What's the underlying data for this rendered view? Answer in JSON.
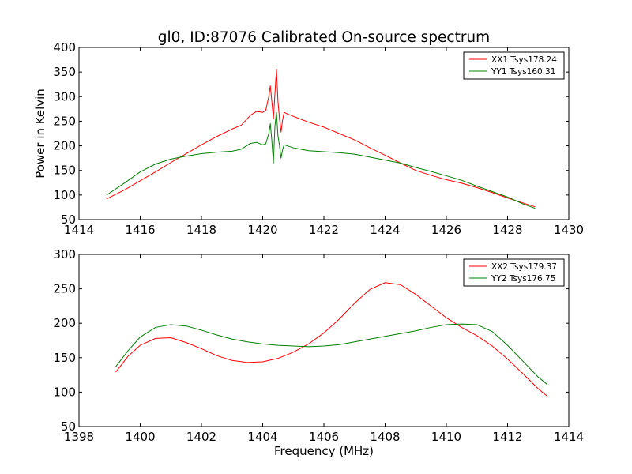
{
  "chart_data": [
    {
      "type": "line",
      "title": "gl0, ID:87076 Calibrated On-source spectrum",
      "xlabel": "",
      "ylabel": "Power in Kelvin",
      "xlim": [
        1414,
        1430
      ],
      "ylim": [
        50,
        400
      ],
      "xticks": [
        1414,
        1416,
        1418,
        1420,
        1422,
        1424,
        1426,
        1428,
        1430
      ],
      "yticks": [
        50,
        100,
        150,
        200,
        250,
        300,
        350,
        400
      ],
      "legend": "top-right",
      "series": [
        {
          "name": "XX1 Tsys178.24",
          "color": "#ff0000",
          "x": [
            1414.9,
            1415.5,
            1416,
            1416.5,
            1417,
            1417.5,
            1418,
            1418.5,
            1419,
            1419.3,
            1419.6,
            1419.8,
            1420.0,
            1420.1,
            1420.2,
            1420.25,
            1420.3,
            1420.35,
            1420.4,
            1420.45,
            1420.5,
            1420.55,
            1420.6,
            1420.65,
            1420.7,
            1420.8,
            1421,
            1421.5,
            1422,
            1422.5,
            1423,
            1423.5,
            1424,
            1424.5,
            1425,
            1425.5,
            1426,
            1426.5,
            1427,
            1427.5,
            1428,
            1428.5,
            1428.9
          ],
          "y": [
            92,
            111,
            129,
            147,
            166,
            184,
            202,
            219,
            234,
            242,
            262,
            270,
            268,
            272,
            300,
            322,
            290,
            255,
            305,
            356,
            290,
            255,
            228,
            252,
            268,
            265,
            260,
            248,
            238,
            225,
            212,
            196,
            181,
            165,
            150,
            140,
            131,
            124,
            115,
            105,
            94,
            84,
            76
          ]
        },
        {
          "name": "YY1 Tsys160.31",
          "color": "#008000",
          "x": [
            1414.9,
            1415.5,
            1416,
            1416.5,
            1417,
            1417.5,
            1418,
            1418.5,
            1419,
            1419.3,
            1419.6,
            1419.8,
            1420.0,
            1420.1,
            1420.2,
            1420.25,
            1420.3,
            1420.35,
            1420.4,
            1420.45,
            1420.5,
            1420.55,
            1420.6,
            1420.65,
            1420.7,
            1420.8,
            1421,
            1421.5,
            1422,
            1422.5,
            1423,
            1423.5,
            1424,
            1424.5,
            1425,
            1425.5,
            1426,
            1426.5,
            1427,
            1427.5,
            1428,
            1428.5,
            1428.9
          ],
          "y": [
            100,
            125,
            147,
            163,
            173,
            179,
            184,
            187,
            189,
            193,
            205,
            207,
            202,
            204,
            225,
            245,
            210,
            165,
            240,
            268,
            220,
            200,
            175,
            192,
            202,
            200,
            196,
            190,
            188,
            186,
            183,
            177,
            171,
            165,
            156,
            148,
            139,
            130,
            118,
            107,
            96,
            82,
            73
          ]
        }
      ]
    },
    {
      "type": "line",
      "title": "",
      "xlabel": "Frequency (MHz)",
      "ylabel": "",
      "xlim": [
        1398,
        1414
      ],
      "ylim": [
        50,
        300
      ],
      "xticks": [
        1398,
        1400,
        1402,
        1404,
        1406,
        1408,
        1410,
        1412,
        1414
      ],
      "yticks": [
        50,
        100,
        150,
        200,
        250,
        300
      ],
      "legend": "top-right",
      "series": [
        {
          "name": "XX2 Tsys179.37",
          "color": "#ff0000",
          "x": [
            1399.2,
            1399.6,
            1400.0,
            1400.5,
            1401.0,
            1401.5,
            1402.0,
            1402.5,
            1403.0,
            1403.5,
            1404.0,
            1404.5,
            1405.0,
            1405.5,
            1406.0,
            1406.5,
            1407.0,
            1407.5,
            1408.0,
            1408.5,
            1409.0,
            1409.5,
            1410.0,
            1410.5,
            1411.0,
            1411.5,
            1412.0,
            1412.5,
            1413.0,
            1413.3
          ],
          "y": [
            129,
            152,
            168,
            178,
            179,
            172,
            163,
            153,
            146,
            143,
            144,
            149,
            158,
            170,
            186,
            206,
            229,
            249,
            259,
            256,
            242,
            225,
            208,
            194,
            182,
            167,
            148,
            127,
            105,
            94
          ]
        },
        {
          "name": "YY2 Tsys176.75",
          "color": "#008000",
          "x": [
            1399.2,
            1399.6,
            1400.0,
            1400.5,
            1401.0,
            1401.5,
            1402.0,
            1402.5,
            1403.0,
            1403.5,
            1404.0,
            1404.5,
            1405.0,
            1405.5,
            1406.0,
            1406.5,
            1407.0,
            1407.5,
            1408.0,
            1408.5,
            1409.0,
            1409.5,
            1410.0,
            1410.5,
            1411.0,
            1411.5,
            1412.0,
            1412.5,
            1413.0,
            1413.3
          ],
          "y": [
            137,
            160,
            180,
            194,
            198,
            196,
            190,
            183,
            177,
            173,
            170,
            168,
            167,
            166,
            167,
            169,
            173,
            177,
            181,
            185,
            189,
            194,
            198,
            199,
            198,
            188,
            168,
            145,
            122,
            111
          ]
        }
      ]
    }
  ]
}
